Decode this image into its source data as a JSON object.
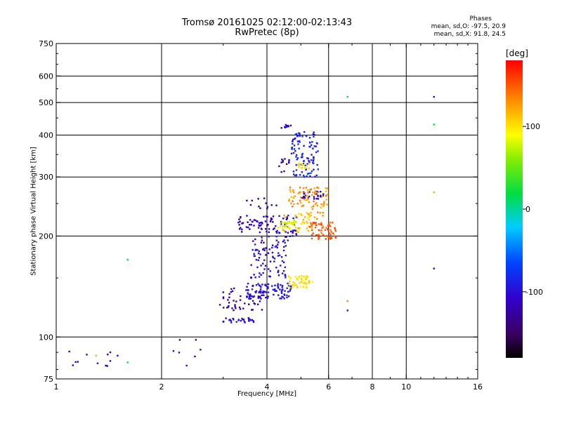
{
  "chart_data": {
    "type": "scatter",
    "title": "Tromsø 20161025 02:12:00-02:13:43",
    "subtitle": "RwPretec (8p)",
    "xlabel": "Frequency [MHz]",
    "ylabel": "Stationary phase Virtual Height [km]",
    "x_scale": "log",
    "y_scale": "log",
    "xlim": [
      1,
      16
    ],
    "ylim": [
      75,
      750
    ],
    "x_ticks": [
      1,
      2,
      4,
      6,
      8,
      10,
      16
    ],
    "x_ticks_labeled": [
      "1",
      "2",
      "4",
      "6",
      "8",
      "10",
      "16"
    ],
    "x_grid": [
      2,
      4,
      6,
      8,
      10
    ],
    "y_ticks": [
      75,
      100,
      200,
      300,
      400,
      500,
      600,
      750
    ],
    "y_ticks_labeled": [
      "75",
      "100",
      "200",
      "300",
      "400",
      "500",
      "600",
      "750"
    ],
    "y_grid": [
      100,
      200,
      300,
      400,
      500,
      600
    ],
    "grid": true,
    "phases": {
      "title": "Phases",
      "line1": "mean, sd,O: -97.5, 20.9",
      "line2": "mean, sd,X: 91.8, 24.5"
    },
    "colorbar": {
      "label": "[deg]",
      "range": [
        -180,
        180
      ],
      "ticks": [
        100,
        0,
        -100
      ],
      "tick_labels": [
        "100",
        "0",
        "-100"
      ],
      "colormap": "rainbow",
      "placement": "right"
    },
    "clusters": [
      {
        "phase": -115,
        "x": [
          1.02,
          1.5
        ],
        "y": [
          80,
          92
        ],
        "n": 12
      },
      {
        "phase": -110,
        "x": [
          2.05,
          2.6
        ],
        "y": [
          80,
          107
        ],
        "n": 7
      },
      {
        "phase": -100,
        "x": [
          3.0,
          3.7
        ],
        "y": [
          110,
          114
        ],
        "n": 28
      },
      {
        "phase": -125,
        "x": [
          2.9,
          3.9
        ],
        "y": [
          120,
          140
        ],
        "n": 55
      },
      {
        "phase": -95,
        "x": [
          3.5,
          4.7
        ],
        "y": [
          130,
          145
        ],
        "n": 90
      },
      {
        "phase": -100,
        "x": [
          3.6,
          4.6
        ],
        "y": [
          150,
          200
        ],
        "n": 85
      },
      {
        "phase": -120,
        "x": [
          3.3,
          4.2
        ],
        "y": [
          205,
          230
        ],
        "n": 55
      },
      {
        "phase": -100,
        "x": [
          4.2,
          4.9
        ],
        "y": [
          190,
          232
        ],
        "n": 40
      },
      {
        "phase": -85,
        "x": [
          4.7,
          5.6
        ],
        "y": [
          300,
          410
        ],
        "n": 100
      },
      {
        "phase": -130,
        "x": [
          4.3,
          4.7
        ],
        "y": [
          310,
          340
        ],
        "n": 12
      },
      {
        "phase": -110,
        "x": [
          4.4,
          4.75
        ],
        "y": [
          420,
          430
        ],
        "n": 10
      },
      {
        "phase": -130,
        "x": [
          3.5,
          4.3
        ],
        "y": [
          240,
          260
        ],
        "n": 12
      },
      {
        "phase": -125,
        "x": [
          5.0,
          5.8
        ],
        "y": [
          258,
          272
        ],
        "n": 28
      },
      {
        "phase": 130,
        "x": [
          4.6,
          6.0
        ],
        "y": [
          245,
          280
        ],
        "n": 70
      },
      {
        "phase": 110,
        "x": [
          4.4,
          5.4
        ],
        "y": [
          205,
          235
        ],
        "n": 45
      },
      {
        "phase": 80,
        "x": [
          4.3,
          4.9
        ],
        "y": [
          210,
          225
        ],
        "n": 22
      },
      {
        "phase": 100,
        "x": [
          4.6,
          5.4
        ],
        "y": [
          140,
          152
        ],
        "n": 50
      },
      {
        "phase": 100,
        "x": [
          4.9,
          5.3
        ],
        "y": [
          318,
          330
        ],
        "n": 16
      },
      {
        "phase": 150,
        "x": [
          5.3,
          6.3
        ],
        "y": [
          195,
          220
        ],
        "n": 65
      },
      {
        "phase": 120,
        "x": [
          5.2,
          5.8
        ],
        "y": [
          225,
          245
        ],
        "n": 12
      }
    ],
    "singles": [
      {
        "x": 1.6,
        "y": 170,
        "phase": 20
      },
      {
        "x": 6.8,
        "y": 520,
        "phase": 20
      },
      {
        "x": 6.8,
        "y": 120,
        "phase": -110
      },
      {
        "x": 6.8,
        "y": 128,
        "phase": 135
      },
      {
        "x": 12,
        "y": 520,
        "phase": -115
      },
      {
        "x": 12,
        "y": 430,
        "phase": 20
      },
      {
        "x": 12,
        "y": 270,
        "phase": 60
      },
      {
        "x": 12,
        "y": 160,
        "phase": -110
      },
      {
        "x": 1.3,
        "y": 88,
        "phase": 60
      },
      {
        "x": 1.6,
        "y": 84,
        "phase": 20
      }
    ]
  }
}
